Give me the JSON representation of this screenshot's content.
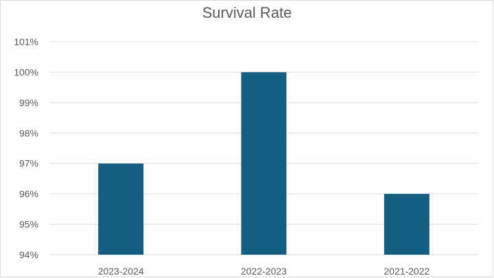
{
  "chart_data": {
    "type": "bar",
    "title": "Survival Rate",
    "categories": [
      "2023-2024",
      "2022-2023",
      "2021-2022"
    ],
    "values": [
      97,
      100,
      96
    ],
    "value_format": "percent",
    "xlabel": "",
    "ylabel": "",
    "ylim": [
      94,
      101
    ],
    "yticks": [
      "94%",
      "95%",
      "96%",
      "97%",
      "98%",
      "99%",
      "100%",
      "101%"
    ],
    "grid": true,
    "legend": "none",
    "bar_color": "#155f82",
    "grid_color": "#d9d9d9"
  }
}
